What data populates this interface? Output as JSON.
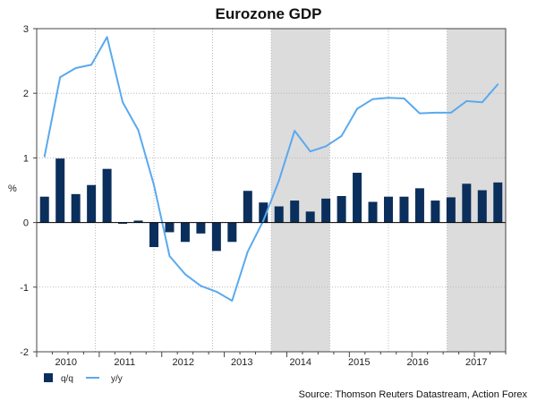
{
  "chart_data": {
    "type": "bar+line",
    "title": "Eurozone GDP",
    "ylabel": "%",
    "xlabel": "",
    "ylim": [
      -2,
      3
    ],
    "yticks": [
      -2,
      -1,
      0,
      1,
      2,
      3
    ],
    "year_labels": [
      "2010",
      "2011",
      "2012",
      "2013",
      "2014",
      "2015",
      "2016",
      "2017"
    ],
    "categories": [
      "2010Q1",
      "2010Q2",
      "2010Q3",
      "2010Q4",
      "2011Q1",
      "2011Q2",
      "2011Q3",
      "2011Q4",
      "2012Q1",
      "2012Q2",
      "2012Q3",
      "2012Q4",
      "2013Q1",
      "2013Q2",
      "2013Q3",
      "2013Q4",
      "2014Q1",
      "2014Q2",
      "2014Q3",
      "2014Q4",
      "2015Q1",
      "2015Q2",
      "2015Q3",
      "2015Q4",
      "2016Q1",
      "2016Q2",
      "2016Q3",
      "2016Q4",
      "2017Q1",
      "2017Q2"
    ],
    "shaded_years": [
      "2014",
      "2017"
    ],
    "series": [
      {
        "name": "q/q",
        "type": "bar",
        "color": "#0b2f5c",
        "values": [
          0.4,
          0.99,
          0.44,
          0.58,
          0.83,
          -0.02,
          0.03,
          -0.38,
          -0.15,
          -0.3,
          -0.17,
          -0.44,
          -0.3,
          0.49,
          0.31,
          0.25,
          0.34,
          0.17,
          0.37,
          0.41,
          0.77,
          0.32,
          0.4,
          0.4,
          0.53,
          0.34,
          0.39,
          0.6,
          0.5,
          0.62
        ]
      },
      {
        "name": "y/y",
        "type": "line",
        "color": "#5aa9ee",
        "values": [
          1.02,
          2.25,
          2.39,
          2.44,
          2.87,
          1.86,
          1.43,
          0.58,
          -0.52,
          -0.8,
          -0.98,
          -1.07,
          -1.21,
          -0.45,
          0.03,
          0.65,
          1.42,
          1.1,
          1.18,
          1.34,
          1.76,
          1.91,
          1.93,
          1.92,
          1.69,
          1.7,
          1.7,
          1.88,
          1.86,
          2.14
        ]
      }
    ],
    "legend": {
      "position": "bottom-left"
    },
    "grid": true,
    "source": "Source: Thomson Reuters Datastream, Action Forex"
  }
}
